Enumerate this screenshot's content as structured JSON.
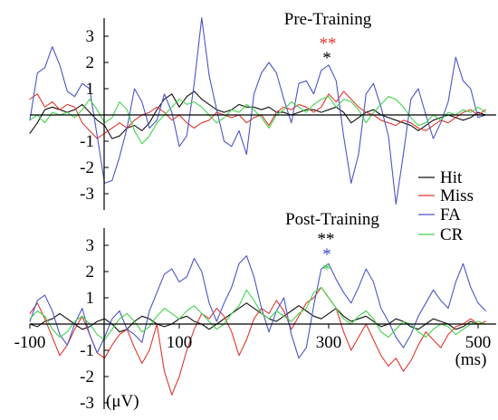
{
  "chart_data": [
    {
      "type": "line",
      "title": "Pre-Training",
      "x_range": [
        -100,
        500
      ],
      "ylim": [
        -3,
        3
      ],
      "y_ticks": [
        3,
        2,
        1,
        -1,
        -2,
        -3
      ],
      "grid": false,
      "significance": [
        {
          "text": "**",
          "color": "#e0382f"
        },
        {
          "text": "*",
          "color": "#000000"
        }
      ],
      "x": [
        -100,
        -90,
        -80,
        -70,
        -60,
        -50,
        -40,
        -30,
        -20,
        -10,
        0,
        10,
        20,
        30,
        40,
        50,
        60,
        70,
        80,
        90,
        100,
        110,
        120,
        130,
        140,
        150,
        160,
        170,
        180,
        190,
        200,
        210,
        220,
        230,
        240,
        250,
        260,
        270,
        280,
        290,
        300,
        310,
        320,
        330,
        340,
        350,
        360,
        370,
        380,
        390,
        400,
        410,
        420,
        430,
        440,
        450,
        460,
        470,
        480,
        490,
        500,
        510
      ],
      "series": [
        {
          "name": "Hit",
          "color": "#111111",
          "values": [
            -0.7,
            -0.3,
            0.2,
            0.3,
            0.2,
            0.1,
            0.2,
            0.4,
            0.1,
            -0.2,
            -0.4,
            -0.9,
            -0.8,
            -0.5,
            -0.4,
            -0.6,
            -0.3,
            0.2,
            0.6,
            0.8,
            0.3,
            0.7,
            0.9,
            0.6,
            0.4,
            0.2,
            0.1,
            0.2,
            0.4,
            0.3,
            0.3,
            0.2,
            0.3,
            0.1,
            0.1,
            0.0,
            0.1,
            0.2,
            0.2,
            0.1,
            0.2,
            0.3,
            0.1,
            -0.3,
            -0.1,
            0.1,
            0.2,
            0.0,
            -0.1,
            -0.2,
            -0.3,
            -0.4,
            -0.6,
            -0.4,
            -0.2,
            -0.1,
            0.0,
            -0.1,
            -0.2,
            -0.1,
            0.1,
            0.0
          ]
        },
        {
          "name": "Miss",
          "color": "#e0382f",
          "values": [
            0.6,
            0.8,
            0.3,
            0.5,
            0.2,
            0.4,
            0.3,
            -0.3,
            -0.6,
            -0.9,
            -0.7,
            -0.5,
            -0.3,
            -0.5,
            -0.2,
            0.0,
            0.1,
            0.3,
            0.1,
            -0.2,
            0.0,
            -0.3,
            -0.5,
            -0.3,
            -0.2,
            0.1,
            0.0,
            -0.1,
            0.0,
            -0.3,
            -0.1,
            0.0,
            -0.4,
            0.1,
            0.3,
            0.2,
            0.4,
            0.3,
            0.1,
            0.3,
            0.8,
            0.5,
            0.9,
            0.6,
            0.3,
            0.1,
            0.0,
            -0.2,
            -0.3,
            -0.4,
            -0.2,
            -0.3,
            -0.5,
            -0.6,
            -0.4,
            -0.2,
            -0.3,
            -0.1,
            0.1,
            0.2,
            0.0,
            0.2
          ]
        },
        {
          "name": "FA",
          "color": "#4a56c8",
          "values": [
            -0.2,
            1.6,
            1.8,
            2.6,
            1.9,
            0.9,
            0.7,
            1.2,
            1.0,
            -0.8,
            -2.6,
            -2.5,
            -1.6,
            -0.5,
            1.0,
            0.5,
            -0.5,
            -0.2,
            0.8,
            0.1,
            -1.2,
            -0.8,
            1.2,
            3.7,
            1.5,
            0.2,
            -1.0,
            -1.2,
            -0.6,
            -1.5,
            0.8,
            1.6,
            2.0,
            1.6,
            0.6,
            -0.3,
            1.2,
            1.3,
            0.8,
            1.7,
            1.9,
            1.3,
            -0.8,
            -2.6,
            -1.5,
            0.8,
            1.2,
            0.3,
            -0.8,
            -3.4,
            -1.5,
            0.6,
            1.0,
            0.0,
            -0.9,
            -0.3,
            0.5,
            2.2,
            1.3,
            1.0,
            -0.1,
            0.0
          ]
        },
        {
          "name": "CR",
          "color": "#44d44c",
          "values": [
            -0.2,
            0.0,
            -0.3,
            0.1,
            0.0,
            0.1,
            -0.1,
            0.2,
            0.6,
            0.2,
            -0.3,
            -0.1,
            0.5,
            0.2,
            -0.6,
            -1.1,
            -0.8,
            -0.3,
            0.0,
            0.3,
            0.6,
            0.4,
            0.5,
            0.3,
            0.0,
            -0.3,
            -0.1,
            0.2,
            0.1,
            0.4,
            0.2,
            -0.1,
            -0.5,
            0.0,
            0.2,
            0.5,
            0.3,
            0.1,
            0.4,
            0.6,
            0.7,
            0.3,
            0.6,
            0.5,
            0.2,
            -0.3,
            0.1,
            0.4,
            0.7,
            0.6,
            0.3,
            -0.1,
            -0.4,
            -0.3,
            0.0,
            -0.2,
            0.1,
            0.0,
            0.2,
            0.1,
            0.3,
            0.1
          ]
        }
      ]
    },
    {
      "type": "line",
      "title": "Post-Training",
      "xlabel": "(ms)",
      "ylabel": "(μV)",
      "x_range": [
        -100,
        500
      ],
      "x_ticks": [
        -100,
        100,
        300,
        500
      ],
      "ylim": [
        -3,
        3
      ],
      "y_ticks": [
        3,
        2,
        1,
        -1,
        -2,
        -3
      ],
      "grid": false,
      "significance": [
        {
          "text": "**",
          "color": "#000000"
        },
        {
          "text": "*",
          "color": "#3d47d8"
        },
        {
          "text": "*",
          "color": "#44d44c"
        }
      ],
      "x": [
        -100,
        -90,
        -80,
        -70,
        -60,
        -50,
        -40,
        -30,
        -20,
        -10,
        0,
        10,
        20,
        30,
        40,
        50,
        60,
        70,
        80,
        90,
        100,
        110,
        120,
        130,
        140,
        150,
        160,
        170,
        180,
        190,
        200,
        210,
        220,
        230,
        240,
        250,
        260,
        270,
        280,
        290,
        300,
        310,
        320,
        330,
        340,
        350,
        360,
        370,
        380,
        390,
        400,
        410,
        420,
        430,
        440,
        450,
        460,
        470,
        480,
        490,
        500,
        510
      ],
      "series": [
        {
          "name": "Hit",
          "color": "#111111",
          "values": [
            0.0,
            -0.1,
            0.1,
            0.2,
            0.4,
            0.2,
            0.0,
            -0.2,
            -0.1,
            0.1,
            0.2,
            0.0,
            -0.3,
            -0.2,
            0.1,
            0.3,
            0.2,
            0.0,
            -0.1,
            0.0,
            0.2,
            0.3,
            0.1,
            0.0,
            -0.2,
            0.0,
            0.2,
            0.4,
            0.6,
            0.8,
            0.6,
            0.4,
            0.2,
            0.1,
            0.3,
            0.5,
            0.7,
            0.5,
            0.3,
            0.2,
            0.4,
            0.6,
            0.3,
            0.1,
            0.2,
            0.3,
            0.1,
            -0.1,
            0.0,
            0.2,
            0.1,
            -0.1,
            -0.2,
            0.0,
            0.2,
            0.1,
            0.0,
            -0.2,
            -0.1,
            0.1,
            0.0,
            0.0
          ]
        },
        {
          "name": "Miss",
          "color": "#e0382f",
          "values": [
            0.4,
            0.8,
            0.2,
            -0.5,
            -1.2,
            -0.8,
            -0.2,
            0.3,
            -0.4,
            -1.1,
            -1.3,
            -0.8,
            -0.4,
            -0.2,
            -0.9,
            -1.5,
            -1.0,
            0.0,
            -1.8,
            -2.7,
            -2.0,
            -1.0,
            -0.2,
            0.4,
            0.2,
            0.6,
            0.3,
            -0.3,
            -1.2,
            -0.6,
            0.2,
            0.6,
            0.4,
            0.9,
            0.5,
            -0.2,
            0.3,
            0.8,
            1.0,
            1.4,
            1.0,
            0.6,
            -0.3,
            -1.0,
            -0.5,
            0.0,
            -0.6,
            -1.2,
            -1.6,
            -1.3,
            -1.8,
            -1.4,
            -0.8,
            -0.3,
            -0.6,
            -0.9,
            -0.4,
            -0.1,
            0.0,
            0.2,
            0.0,
            0.1
          ]
        },
        {
          "name": "FA",
          "color": "#4a56c8",
          "values": [
            0.1,
            0.9,
            1.1,
            0.5,
            -0.4,
            -0.8,
            0.0,
            0.6,
            -0.4,
            -1.1,
            -0.5,
            0.2,
            0.5,
            -0.2,
            -0.4,
            -0.7,
            0.5,
            1.2,
            1.9,
            2.1,
            1.6,
            1.8,
            2.5,
            2.0,
            0.8,
            0.1,
            0.8,
            1.4,
            2.3,
            2.6,
            1.8,
            0.6,
            -0.3,
            0.5,
            1.0,
            -0.4,
            -1.3,
            -0.9,
            0.7,
            2.1,
            2.3,
            1.7,
            1.2,
            0.8,
            1.4,
            2.1,
            1.6,
            0.6,
            0.1,
            -0.5,
            -0.9,
            -0.4,
            0.3,
            0.8,
            1.3,
            0.9,
            0.6,
            1.6,
            2.3,
            1.4,
            0.8,
            0.5
          ]
        },
        {
          "name": "CR",
          "color": "#44d44c",
          "values": [
            0.2,
            0.5,
            0.3,
            -0.2,
            -0.5,
            -0.3,
            0.1,
            0.3,
            0.0,
            -0.4,
            -0.6,
            -0.2,
            0.2,
            0.4,
            0.1,
            -0.3,
            -0.1,
            0.3,
            0.6,
            0.4,
            0.2,
            0.5,
            0.7,
            0.4,
            0.1,
            -0.2,
            0.0,
            0.4,
            0.7,
            1.3,
            0.9,
            0.4,
            0.2,
            0.5,
            0.3,
            0.1,
            0.4,
            0.6,
            1.2,
            1.4,
            1.0,
            0.6,
            0.2,
            0.0,
            0.3,
            0.5,
            0.2,
            -0.3,
            -0.5,
            -0.2,
            0.1,
            0.0,
            -0.3,
            -0.5,
            -0.2,
            0.0,
            -0.1,
            -0.4,
            -0.2,
            0.0,
            0.1,
            0.0
          ]
        }
      ]
    }
  ]
}
